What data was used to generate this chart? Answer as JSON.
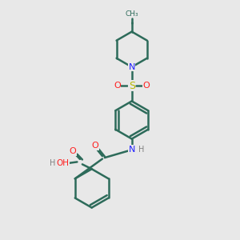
{
  "bg_color": "#e8e8e8",
  "bond_color": "#2d6b5a",
  "N_color": "#2020ff",
  "O_color": "#ff2020",
  "S_color": "#b8b800",
  "H_color": "#808080",
  "line_width": 1.8,
  "figsize": [
    3.0,
    3.0
  ],
  "dpi": 100,
  "xlim": [
    0,
    10
  ],
  "ylim": [
    0,
    10
  ]
}
